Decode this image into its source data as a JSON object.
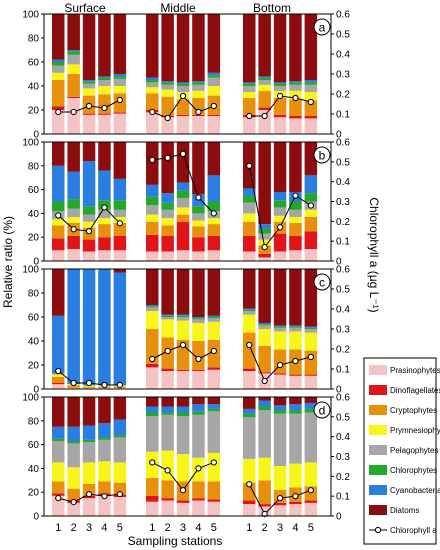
{
  "figure": {
    "ylabel_left": "Relative ratio (%)",
    "ylabel_right": "Chlorophyll a (μg L⁻¹)",
    "xlabel": "Sampling stations",
    "depth_titles": [
      "Surface",
      "Middle",
      "Bottom"
    ],
    "station_labels": [
      "1",
      "2",
      "3",
      "4",
      "5"
    ],
    "left_ticks": [
      0,
      20,
      40,
      60,
      80,
      100
    ],
    "right_ticks": [
      0,
      0.1,
      0.2,
      0.3,
      0.4,
      0.5,
      0.6
    ]
  },
  "colors": {
    "Prasinophytes": "#f4c4c4",
    "Dinoflagellates": "#e2141b",
    "Cryptophytes": "#e8900e",
    "Prymnesiophytes": "#f7f51a",
    "Pelagophytes": "#a6a6a6",
    "Chlorophytes": "#23a82a",
    "Cyanobacteria": "#2a7de1",
    "Diatoms": "#8b0d0d",
    "Chlorophyll a": "#ffffff"
  },
  "legend": [
    "Prasinophytes",
    "Dinoflagellates",
    "Cryptophytes",
    "Prymnesiophytes",
    "Pelagophytes",
    "Chlorophytes",
    "Cyanobacteria",
    "Diatoms",
    "Chlorophyll a"
  ],
  "chart_data": [
    {
      "type": "bar",
      "panel": "a",
      "categories": [
        "Surface-1",
        "Surface-2",
        "Surface-3",
        "Surface-4",
        "Surface-5",
        "Middle-1",
        "Middle-2",
        "Middle-3",
        "Middle-4",
        "Middle-5",
        "Bottom-1",
        "Bottom-2",
        "Bottom-3",
        "Bottom-4",
        "Bottom-5"
      ],
      "ylim": [
        0,
        100
      ],
      "y2lim": [
        0,
        0.6
      ],
      "series": [
        {
          "name": "Prasinophytes",
          "values": [
            20,
            30,
            16,
            16,
            17,
            18,
            14,
            15,
            15,
            15,
            14,
            20,
            14,
            13,
            13
          ]
        },
        {
          "name": "Dinoflagellates",
          "values": [
            3,
            1,
            1,
            1,
            1,
            2,
            1,
            1,
            1,
            1,
            2,
            2,
            2,
            2,
            2
          ]
        },
        {
          "name": "Cryptophytes",
          "values": [
            22,
            19,
            15,
            16,
            16,
            14,
            16,
            13,
            14,
            16,
            14,
            14,
            14,
            14,
            13
          ]
        },
        {
          "name": "Prymnesiophytes",
          "values": [
            6,
            8,
            6,
            7,
            6,
            5,
            6,
            6,
            6,
            8,
            5,
            5,
            6,
            7,
            7
          ]
        },
        {
          "name": "Pelagophytes",
          "values": [
            6,
            8,
            4,
            5,
            6,
            4,
            4,
            5,
            5,
            7,
            5,
            4,
            4,
            5,
            6
          ]
        },
        {
          "name": "Chlorophytes",
          "values": [
            3,
            3,
            2,
            2,
            2,
            2,
            2,
            2,
            2,
            2,
            2,
            2,
            2,
            2,
            2
          ]
        },
        {
          "name": "Cyanobacteria",
          "values": [
            2,
            1,
            1,
            1,
            2,
            2,
            1,
            1,
            1,
            2,
            1,
            1,
            1,
            1,
            2
          ]
        },
        {
          "name": "Diatoms",
          "values": [
            38,
            30,
            55,
            52,
            50,
            53,
            56,
            57,
            56,
            49,
            57,
            52,
            57,
            56,
            55
          ]
        },
        {
          "name": "Chlorophyll a",
          "values": [
            0.11,
            0.11,
            0.14,
            0.13,
            0.17,
            0.11,
            0.08,
            0.19,
            0.11,
            0.14,
            0.09,
            0.09,
            0.19,
            0.18,
            0.16
          ]
        }
      ]
    },
    {
      "type": "bar",
      "panel": "b",
      "categories": [
        "Surface-1",
        "Surface-2",
        "Surface-3",
        "Surface-4",
        "Surface-5",
        "Middle-1",
        "Middle-2",
        "Middle-3",
        "Middle-4",
        "Middle-5",
        "Bottom-1",
        "Bottom-2",
        "Bottom-3",
        "Bottom-4",
        "Bottom-5"
      ],
      "ylim": [
        0,
        100
      ],
      "y2lim": [
        0,
        0.6
      ],
      "series": [
        {
          "name": "Prasinophytes",
          "values": [
            9,
            10,
            8,
            9,
            9,
            8,
            8,
            9,
            8,
            9,
            8,
            3,
            8,
            9,
            10
          ]
        },
        {
          "name": "Dinoflagellates",
          "values": [
            10,
            11,
            10,
            11,
            12,
            14,
            13,
            24,
            12,
            12,
            13,
            3,
            15,
            12,
            15
          ]
        },
        {
          "name": "Cryptophytes",
          "values": [
            11,
            11,
            10,
            11,
            11,
            11,
            9,
            6,
            9,
            10,
            12,
            7,
            10,
            11,
            12
          ]
        },
        {
          "name": "Prymnesiophytes",
          "values": [
            5,
            5,
            5,
            5,
            5,
            6,
            6,
            6,
            5,
            5,
            7,
            5,
            5,
            5,
            6
          ]
        },
        {
          "name": "Pelagophytes",
          "values": [
            7,
            7,
            6,
            7,
            6,
            8,
            7,
            8,
            6,
            6,
            9,
            5,
            7,
            6,
            7
          ]
        },
        {
          "name": "Chlorophytes",
          "values": [
            8,
            8,
            7,
            8,
            8,
            7,
            6,
            6,
            6,
            8,
            6,
            4,
            6,
            7,
            7
          ]
        },
        {
          "name": "Cyanobacteria",
          "values": [
            30,
            23,
            38,
            25,
            18,
            10,
            8,
            7,
            10,
            22,
            6,
            4,
            7,
            8,
            15
          ]
        },
        {
          "name": "Diatoms",
          "values": [
            20,
            25,
            16,
            24,
            31,
            36,
            43,
            34,
            44,
            28,
            39,
            69,
            42,
            42,
            28
          ]
        },
        {
          "name": "Chlorophyll a",
          "values": [
            0.23,
            0.16,
            0.15,
            0.27,
            0.19,
            0.51,
            0.52,
            0.54,
            0.32,
            0.24,
            0.48,
            0.07,
            0.17,
            0.33,
            0.28
          ]
        }
      ]
    },
    {
      "type": "bar",
      "panel": "c",
      "categories": [
        "Surface-1",
        "Surface-2",
        "Surface-3",
        "Surface-4",
        "Surface-5",
        "Middle-1",
        "Middle-2",
        "Middle-3",
        "Middle-4",
        "Middle-5",
        "Bottom-1",
        "Bottom-2",
        "Bottom-3",
        "Bottom-4",
        "Bottom-5"
      ],
      "ylim": [
        0,
        100
      ],
      "y2lim": [
        0,
        0.6
      ],
      "series": [
        {
          "name": "Prasinophytes",
          "values": [
            4,
            1,
            1,
            1,
            1,
            18,
            15,
            15,
            15,
            16,
            15,
            13,
            12,
            11,
            11
          ]
        },
        {
          "name": "Dinoflagellates",
          "values": [
            1,
            0,
            0,
            0,
            0,
            3,
            2,
            1,
            1,
            2,
            2,
            1,
            1,
            1,
            1
          ]
        },
        {
          "name": "Cryptophytes",
          "values": [
            5,
            2,
            1,
            1,
            1,
            29,
            26,
            25,
            24,
            23,
            30,
            22,
            20,
            21,
            20
          ]
        },
        {
          "name": "Prymnesiophytes",
          "values": [
            2,
            1,
            1,
            1,
            1,
            15,
            15,
            16,
            15,
            15,
            15,
            14,
            15,
            15,
            15
          ]
        },
        {
          "name": "Pelagophytes",
          "values": [
            1,
            0,
            0,
            0,
            0,
            3,
            2,
            3,
            3,
            3,
            3,
            3,
            3,
            3,
            3
          ]
        },
        {
          "name": "Chlorophytes",
          "values": [
            0,
            0,
            0,
            0,
            0,
            1,
            1,
            1,
            1,
            1,
            1,
            1,
            1,
            1,
            1
          ]
        },
        {
          "name": "Cyanobacteria",
          "values": [
            48,
            96,
            97,
            97,
            94,
            1,
            1,
            1,
            1,
            1,
            1,
            1,
            1,
            1,
            1
          ]
        },
        {
          "name": "Diatoms",
          "values": [
            39,
            0,
            0,
            0,
            3,
            30,
            38,
            38,
            40,
            39,
            33,
            45,
            47,
            47,
            48
          ]
        },
        {
          "name": "Chlorophyll a",
          "values": [
            0.09,
            0.03,
            0.03,
            0.02,
            0.02,
            0.15,
            0.19,
            0.22,
            0.15,
            0.19,
            0.22,
            0.04,
            0.12,
            0.14,
            0.16
          ]
        }
      ]
    },
    {
      "type": "bar",
      "panel": "d",
      "categories": [
        "Surface-1",
        "Surface-2",
        "Surface-3",
        "Surface-4",
        "Surface-5",
        "Middle-1",
        "Middle-2",
        "Middle-3",
        "Middle-4",
        "Middle-5",
        "Bottom-1",
        "Bottom-2",
        "Bottom-3",
        "Bottom-4",
        "Bottom-5"
      ],
      "ylim": [
        0,
        100
      ],
      "y2lim": [
        0,
        0.6
      ],
      "series": [
        {
          "name": "Prasinophytes",
          "values": [
            17,
            11,
            15,
            17,
            16,
            12,
            13,
            11,
            13,
            12,
            10,
            8,
            9,
            10,
            11
          ]
        },
        {
          "name": "Dinoflagellates",
          "values": [
            2,
            2,
            2,
            2,
            2,
            5,
            2,
            2,
            2,
            2,
            3,
            2,
            2,
            2,
            2
          ]
        },
        {
          "name": "Cryptophytes",
          "values": [
            10,
            10,
            10,
            10,
            10,
            15,
            15,
            16,
            14,
            15,
            15,
            20,
            11,
            12,
            12
          ]
        },
        {
          "name": "Prymnesiophytes",
          "values": [
            16,
            18,
            18,
            17,
            17,
            22,
            25,
            23,
            20,
            24,
            20,
            19,
            20,
            20,
            20
          ]
        },
        {
          "name": "Pelagophytes",
          "values": [
            18,
            20,
            17,
            18,
            21,
            30,
            30,
            32,
            36,
            35,
            35,
            40,
            44,
            42,
            42
          ]
        },
        {
          "name": "Chlorophytes",
          "values": [
            2,
            2,
            2,
            2,
            2,
            3,
            2,
            3,
            3,
            2,
            3,
            3,
            3,
            3,
            3
          ]
        },
        {
          "name": "Cyanobacteria",
          "values": [
            10,
            12,
            12,
            12,
            13,
            5,
            5,
            5,
            6,
            4,
            4,
            5,
            4,
            5,
            5
          ]
        },
        {
          "name": "Diatoms",
          "values": [
            25,
            25,
            24,
            22,
            19,
            8,
            8,
            8,
            6,
            6,
            10,
            3,
            7,
            6,
            5
          ]
        },
        {
          "name": "Chlorophyll a",
          "values": [
            0.09,
            0.07,
            0.11,
            0.1,
            0.11,
            0.27,
            0.23,
            0.13,
            0.24,
            0.27,
            0.16,
            0.01,
            0.09,
            0.1,
            0.13
          ]
        }
      ]
    }
  ]
}
